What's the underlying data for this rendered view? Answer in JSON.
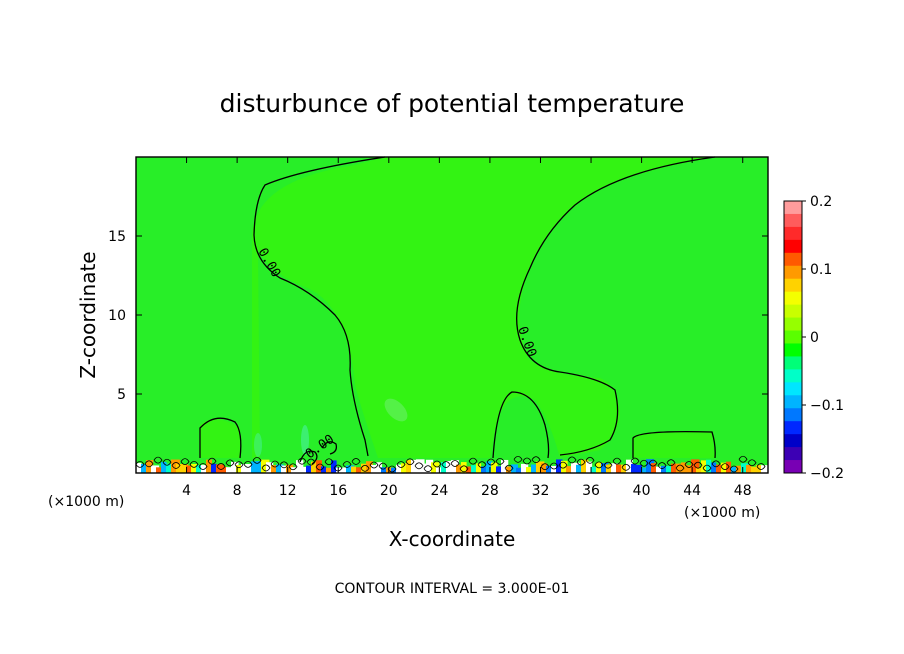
{
  "chart_data": {
    "type": "heatmap",
    "title": "disturbunce of potential temperature",
    "xlabel": "X-coordinate",
    "ylabel": "Z-coordinate",
    "x_unit_left": "(×1000 m)",
    "x_unit_right": "(×1000 m)",
    "xlim": [
      0,
      50
    ],
    "ylim": [
      0,
      20
    ],
    "x_ticks": [
      4,
      8,
      12,
      16,
      20,
      24,
      28,
      32,
      36,
      40,
      44,
      48
    ],
    "y_ticks": [
      5,
      10,
      15
    ],
    "colorbar": {
      "range": [
        -0.2,
        0.2
      ],
      "tick_values": [
        0.2,
        0.1,
        0,
        -0.1,
        -0.2
      ],
      "tick_labels": [
        "0.2",
        "0.1",
        "0",
        "−0.1",
        "−0.2"
      ],
      "colors": [
        "#ff9c9c",
        "#ff5c5c",
        "#ff2a2a",
        "#ff0000",
        "#ff5a00",
        "#ff9a00",
        "#ffd200",
        "#f4ff00",
        "#c8ff00",
        "#96ff00",
        "#5aff00",
        "#00ff00",
        "#00ff78",
        "#00ffc8",
        "#00e6ff",
        "#00b4ff",
        "#0078ff",
        "#0028ff",
        "#0000c8",
        "#3c00b4",
        "#7800b4"
      ]
    },
    "contour_labels": [
      "0.00",
      "0.00",
      "0.00"
    ],
    "annotation": "CONTOUR INTERVAL = 3.000E-01",
    "background_value": 0.0,
    "grid": false
  }
}
